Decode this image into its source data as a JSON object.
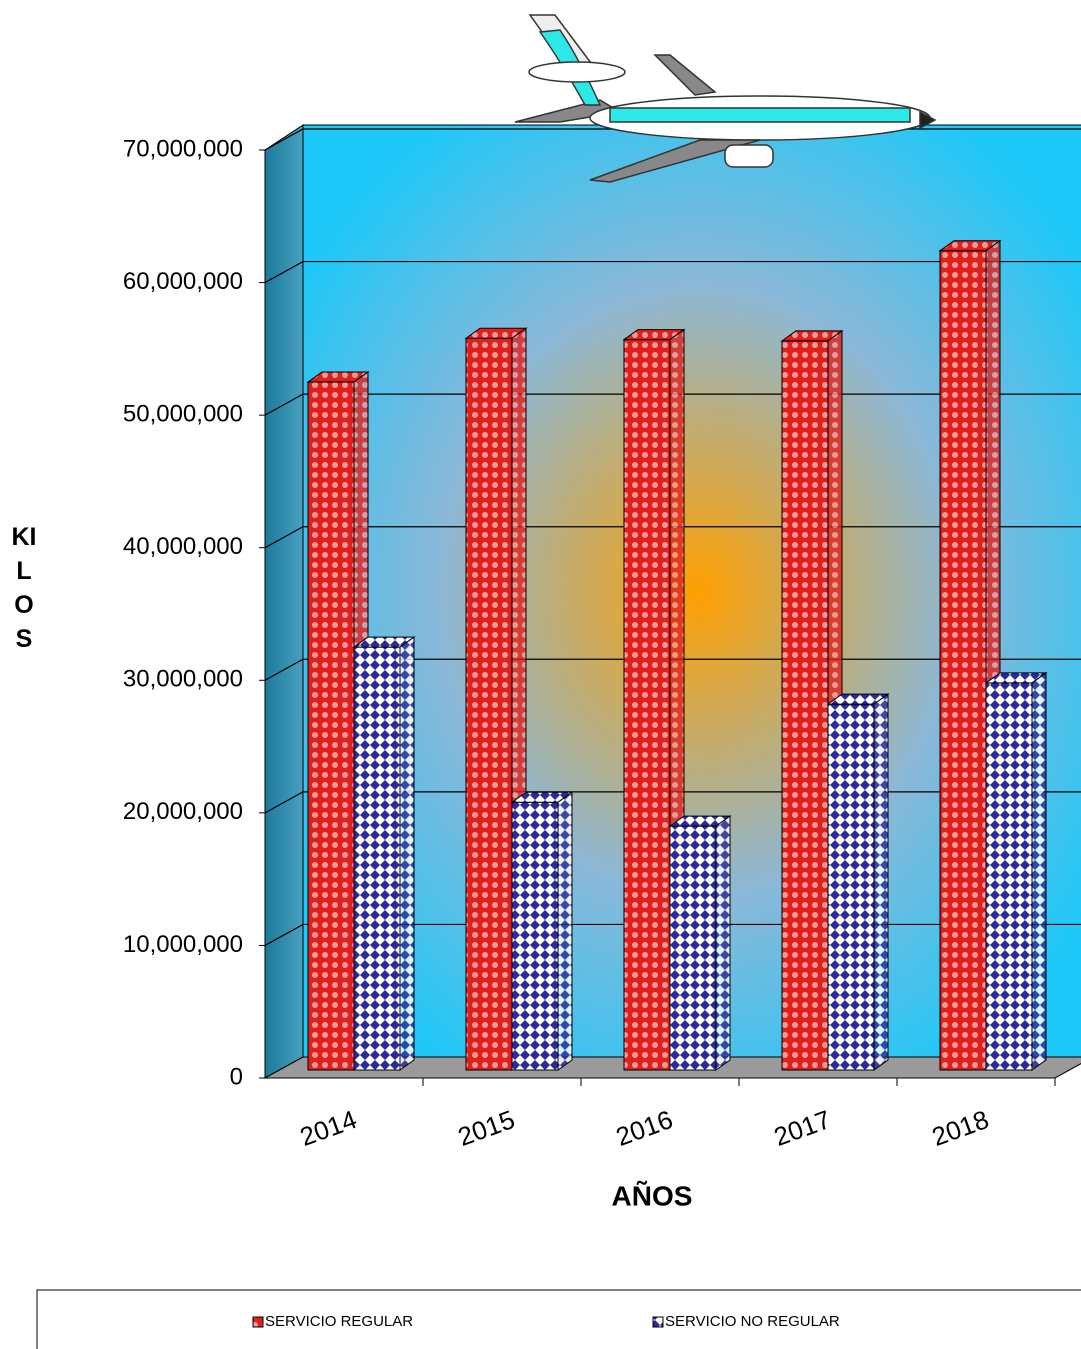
{
  "chart_data": {
    "type": "bar3d",
    "x_label": "AÑOS",
    "y_label": "KILOS",
    "categories": [
      "2014",
      "2015",
      "2016",
      "2017",
      "2018"
    ],
    "series": [
      {
        "name": "SERVICIO REGULAR",
        "color": "#e0201c",
        "values": [
          52500000,
          55800000,
          55700000,
          55600000,
          62400000
        ]
      },
      {
        "name": "SERVICIO NO REGULAR",
        "color": "#2a2a9a",
        "values": [
          32500000,
          20800000,
          19000000,
          28200000,
          29800000
        ]
      }
    ],
    "ylim": [
      0,
      70000000
    ],
    "yticks": [
      0,
      {
        "value": 10000000,
        "label": "10,000,000"
      },
      {
        "value": 20000000,
        "label": "20,000,000"
      },
      {
        "value": 30000000,
        "label": "30,000,000"
      },
      {
        "value": 40000000,
        "label": "40,000,000"
      },
      {
        "value": 50000000,
        "label": "50,000,000"
      },
      {
        "value": 60000000,
        "label": "60,000,000"
      },
      {
        "value": 70000000,
        "label": "70,000,000"
      }
    ],
    "grid": true
  }
}
